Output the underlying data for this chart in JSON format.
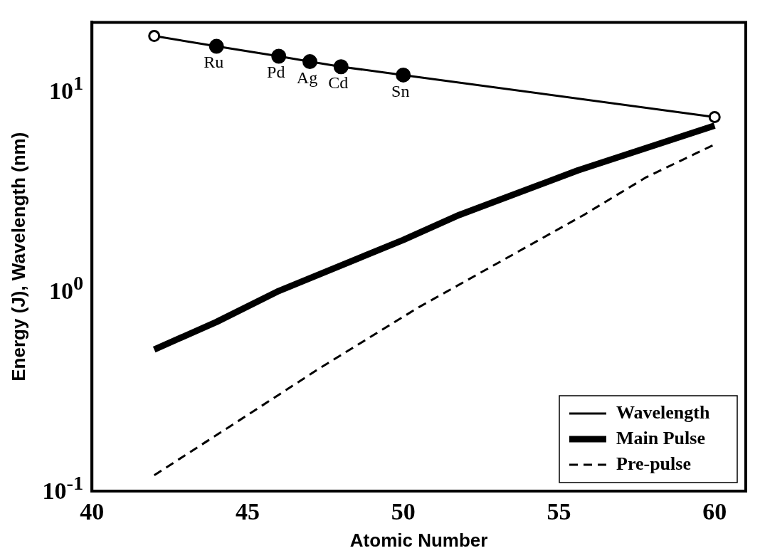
{
  "chart_data": {
    "type": "line",
    "xlabel": "Atomic Number",
    "ylabel": "Energy (J), Wavelength (nm)",
    "xlim": [
      40,
      61
    ],
    "xticks": [
      40,
      45,
      50,
      55,
      60
    ],
    "ylim": [
      0.1,
      22
    ],
    "yticks": [
      {
        "value": 0.1,
        "label": "10$^{-1}$"
      },
      {
        "value": 1,
        "label": "10$^{0}$"
      },
      {
        "value": 10,
        "label": "10$^{1}$"
      }
    ],
    "log": "y",
    "legend": "bottom right",
    "series": [
      {
        "name": "Wavelength",
        "type": "line",
        "color": "#000000",
        "marker": "circle",
        "line_style": "solid",
        "x": [
          42,
          44,
          46,
          47,
          48,
          50,
          60
        ],
        "values": [
          18.8,
          16.7,
          14.9,
          14.0,
          13.2,
          12.0,
          7.4
        ]
      },
      {
        "name": "Main Pulse",
        "type": "line",
        "color": "#000000",
        "marker": "none",
        "line_style": "solid",
        "x": [
          42,
          44,
          46,
          50,
          51.8,
          55.6,
          60
        ],
        "values": [
          0.51,
          0.7,
          1.0,
          1.8,
          2.4,
          4.0,
          6.7
        ]
      },
      {
        "name": "Pre-pulse",
        "type": "line",
        "color": "#000000",
        "marker": "none",
        "line_style": "dashed",
        "x": [
          42,
          45,
          47.3,
          50.5,
          55.8,
          57.8,
          60
        ],
        "values": [
          0.12,
          0.24,
          0.41,
          0.83,
          2.4,
          3.7,
          5.4
        ]
      }
    ],
    "annotations": [
      {
        "text": "Ru",
        "x": 44,
        "y": 16.7
      },
      {
        "text": "Pd",
        "x": 46,
        "y": 14.9
      },
      {
        "text": "Ag",
        "x": 47,
        "y": 14.0
      },
      {
        "text": "Cd",
        "x": 48,
        "y": 13.2
      },
      {
        "text": "Sn",
        "x": 50,
        "y": 12.0
      }
    ]
  }
}
